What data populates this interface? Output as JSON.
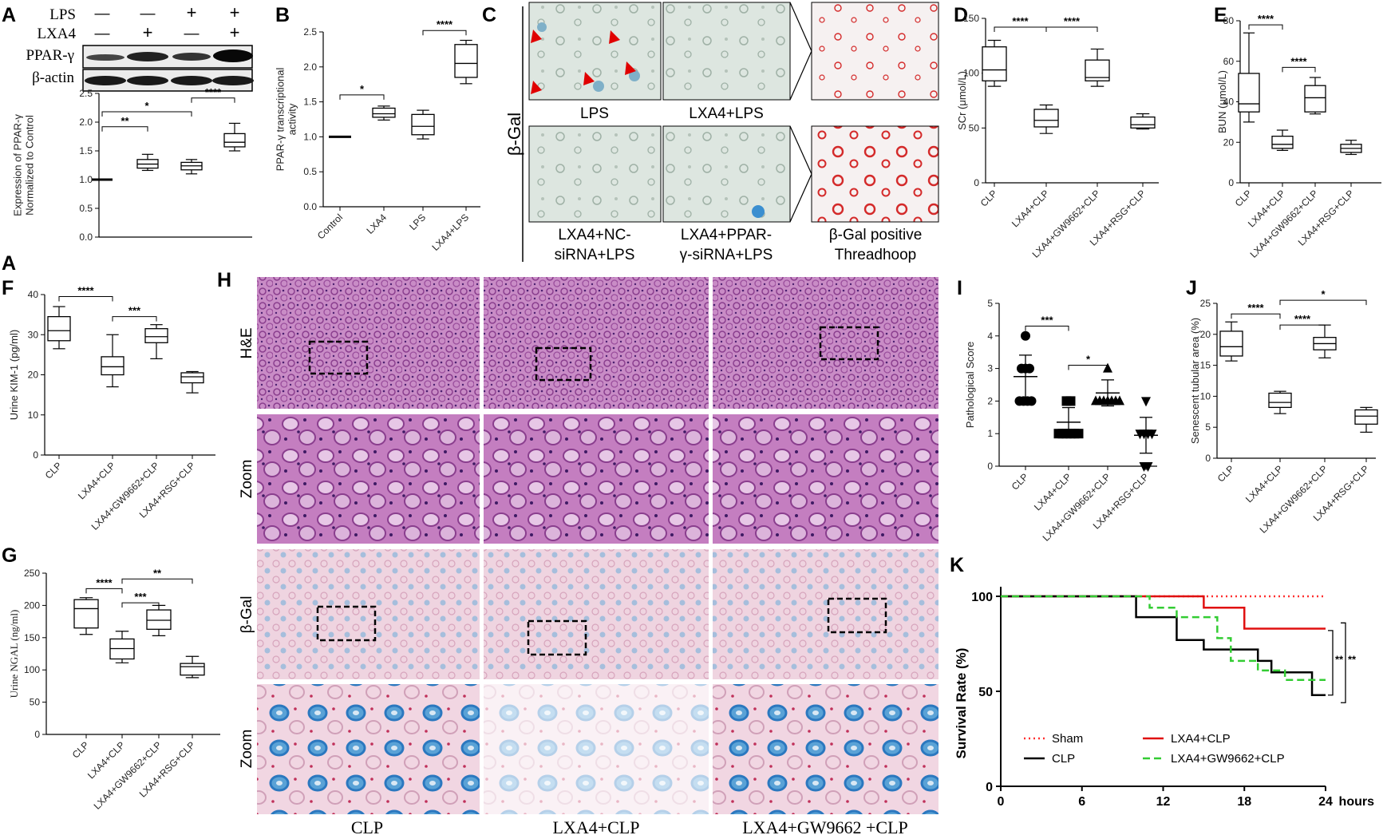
{
  "panel_letters": [
    "A",
    "B",
    "C",
    "D",
    "E",
    "F",
    "G",
    "H",
    "I",
    "J",
    "K"
  ],
  "colors": {
    "sham": "#ff3030",
    "clp": "#000000",
    "lxa4clp": "#e01010",
    "gw": "#33cc33",
    "sgal": "#d42a2a",
    "he": "#b060b0",
    "bgal_stain": "#3b8fd0"
  },
  "blot": {
    "row_labels": [
      "LPS",
      "LXA4"
    ],
    "lps": [
      "—",
      "—",
      "+",
      "+"
    ],
    "lxa4": [
      "—",
      "+",
      "—",
      "+"
    ],
    "bands": [
      "PPAR-γ",
      "β-actin"
    ]
  },
  "panel_c": {
    "row_label": "β-Gal",
    "captions": [
      "LPS",
      "LXA4+LPS",
      "LXA4+NC-",
      "siRNA+LPS",
      "LXA4+PPAR-",
      "γ-siRNA+LPS",
      "β-Gal positive",
      "Threadhoop"
    ]
  },
  "panel_h": {
    "row_labels": [
      "H&E",
      "Zoom",
      "β-Gal",
      "Zoom"
    ],
    "col_labels": [
      "CLP",
      "LXA4+CLP",
      "LXA4+GW9662 +CLP"
    ]
  },
  "chart_data": [
    {
      "panel": "A",
      "type": "box",
      "ylabel": [
        "Expression of PPAR-γ",
        "Normalized to Control"
      ],
      "ylim": [
        0,
        2.5
      ],
      "yticks": [
        0,
        0.5,
        1.0,
        1.5,
        2.0,
        2.5
      ],
      "categories": [
        "Control",
        "LXA4",
        "LPS",
        "LXA4+LPS"
      ],
      "show_xticks": false,
      "boxes": [
        {
          "min": 1.0,
          "q1": 1.0,
          "med": 1.0,
          "q3": 1.0,
          "max": 1.0
        },
        {
          "min": 1.16,
          "q1": 1.2,
          "med": 1.27,
          "q3": 1.35,
          "max": 1.44
        },
        {
          "min": 1.1,
          "q1": 1.17,
          "med": 1.24,
          "q3": 1.3,
          "max": 1.35
        },
        {
          "min": 1.5,
          "q1": 1.57,
          "med": 1.65,
          "q3": 1.8,
          "max": 1.98
        }
      ],
      "brackets": [
        {
          "from": 0,
          "to": 1,
          "label": "**",
          "y": 1.92
        },
        {
          "from": 0,
          "to": 2,
          "label": "*",
          "y": 2.18
        },
        {
          "from": 2,
          "to": 3,
          "label": "****",
          "y": 2.42
        }
      ]
    },
    {
      "panel": "B",
      "type": "box",
      "ylabel": [
        "PPAR-γ transcriptional",
        "activity"
      ],
      "ylim": [
        0,
        2.5
      ],
      "yticks": [
        0.0,
        0.5,
        1.0,
        1.5,
        2.0,
        2.5
      ],
      "categories": [
        "Control",
        "LXA4",
        "LPS",
        "LXA4+LPS"
      ],
      "show_xticks": true,
      "boxes": [
        {
          "min": 1.0,
          "q1": 1.0,
          "med": 1.0,
          "q3": 1.0,
          "max": 1.0
        },
        {
          "min": 1.24,
          "q1": 1.28,
          "med": 1.33,
          "q3": 1.41,
          "max": 1.44
        },
        {
          "min": 0.97,
          "q1": 1.03,
          "med": 1.15,
          "q3": 1.32,
          "max": 1.38
        },
        {
          "min": 1.76,
          "q1": 1.85,
          "med": 2.05,
          "q3": 2.32,
          "max": 2.38
        }
      ],
      "brackets": [
        {
          "from": 0,
          "to": 1,
          "label": "*",
          "y": 1.6
        },
        {
          "from": 2,
          "to": 3,
          "label": "****",
          "y": 2.52
        }
      ]
    },
    {
      "panel": "D",
      "type": "box",
      "ylabel": [
        "SCr (μmol/L)"
      ],
      "ylim": [
        0,
        150
      ],
      "yticks": [
        0,
        50,
        100,
        150
      ],
      "categories": [
        "CLP",
        "LXA4+CLP",
        "LXA4+GW9662+CLP",
        "LXA4+RSG+CLP"
      ],
      "show_xticks": true,
      "boxes": [
        {
          "min": 88,
          "q1": 93,
          "med": 103,
          "q3": 124,
          "max": 130
        },
        {
          "min": 45,
          "q1": 51,
          "med": 57,
          "q3": 67,
          "max": 71
        },
        {
          "min": 88,
          "q1": 93,
          "med": 96,
          "q3": 112,
          "max": 122
        },
        {
          "min": 49,
          "q1": 50,
          "med": 53,
          "q3": 60,
          "max": 63
        }
      ],
      "brackets": [
        {
          "from": 0,
          "to": 1,
          "label": "****",
          "y": 142
        },
        {
          "from": 1,
          "to": 2,
          "label": "****",
          "y": 142
        }
      ]
    },
    {
      "panel": "E",
      "type": "box",
      "ylabel": [
        "BUN (μmol/L)"
      ],
      "ylim": [
        0,
        80
      ],
      "yticks": [
        0,
        20,
        40,
        60,
        80
      ],
      "categories": [
        "CLP",
        "LXA4+CLP",
        "LXA4+GW9662+CLP",
        "LXA4+RSG+CLP"
      ],
      "show_xticks": true,
      "boxes": [
        {
          "min": 30,
          "q1": 35,
          "med": 39,
          "q3": 54,
          "max": 74
        },
        {
          "min": 16,
          "q1": 17,
          "med": 19,
          "q3": 23,
          "max": 26
        },
        {
          "min": 34,
          "q1": 35,
          "med": 42,
          "q3": 48,
          "max": 52
        },
        {
          "min": 14,
          "q1": 15,
          "med": 17,
          "q3": 19,
          "max": 21
        }
      ],
      "brackets": [
        {
          "from": 0,
          "to": 1,
          "label": "****",
          "y": 78
        },
        {
          "from": 1,
          "to": 2,
          "label": "****",
          "y": 57
        }
      ]
    },
    {
      "panel": "F",
      "type": "box",
      "ylabel": [
        "Urine KIM-1 (pg/ml)"
      ],
      "ylim": [
        0,
        40
      ],
      "yticks": [
        0,
        10,
        20,
        30,
        40
      ],
      "categories": [
        "CLP",
        "LXA4+CLP",
        "LXA4+GW9662+CLP",
        "LXA4+RSG+CLP"
      ],
      "show_xticks": true,
      "boxes": [
        {
          "min": 26.5,
          "q1": 28.5,
          "med": 31,
          "q3": 34.5,
          "max": 37
        },
        {
          "min": 17,
          "q1": 20,
          "med": 22,
          "q3": 24.5,
          "max": 30
        },
        {
          "min": 24,
          "q1": 28,
          "med": 29.5,
          "q3": 31.5,
          "max": 32.5
        },
        {
          "min": 15.5,
          "q1": 18,
          "med": 19.5,
          "q3": 20.5,
          "max": 20.8
        }
      ],
      "brackets": [
        {
          "from": 0,
          "to": 1,
          "label": "****",
          "y": 39.5
        },
        {
          "from": 1,
          "to": 2,
          "label": "***",
          "y": 34.5
        }
      ]
    },
    {
      "panel": "G",
      "type": "box",
      "ylabel": [
        "Urine NGAL (ng/ml)"
      ],
      "serif_ylabel": true,
      "ylim": [
        0,
        250
      ],
      "yticks": [
        0,
        50,
        100,
        150,
        200,
        250
      ],
      "categories": [
        "CLP",
        "LXA4+CLP",
        "LXA4+GW9662+CLP",
        "LXA4+RSG+CLP"
      ],
      "show_xticks": true,
      "boxes": [
        {
          "min": 155,
          "q1": 165,
          "med": 195,
          "q3": 209,
          "max": 212
        },
        {
          "min": 111,
          "q1": 117,
          "med": 133,
          "q3": 148,
          "max": 160
        },
        {
          "min": 153,
          "q1": 163,
          "med": 177,
          "q3": 193,
          "max": 200
        },
        {
          "min": 88,
          "q1": 92,
          "med": 105,
          "q3": 110,
          "max": 121
        }
      ],
      "brackets": [
        {
          "from": 0,
          "to": 1,
          "label": "****",
          "y": 226
        },
        {
          "from": 1,
          "to": 2,
          "label": "***",
          "y": 204
        },
        {
          "from": 1,
          "to": 3,
          "label": "**",
          "y": 241
        }
      ]
    },
    {
      "panel": "I",
      "type": "scatter",
      "ylabel": [
        "Pathological Score"
      ],
      "ylim": [
        0,
        5
      ],
      "yticks": [
        0,
        1,
        2,
        3,
        4,
        5
      ],
      "categories": [
        "CLP",
        "LXA4+CLP",
        "LXA4+GW9662+CLP",
        "LXA4+RSG+CLP"
      ],
      "show_xticks": true,
      "markers": [
        "circle",
        "square",
        "triangle",
        "triangle-down"
      ],
      "groups": [
        {
          "points": [
            4,
            3,
            3,
            3,
            2,
            2,
            2,
            2
          ],
          "mean": 2.75,
          "sd": 0.66
        },
        {
          "points": [
            2,
            2,
            1,
            1,
            1,
            1,
            1,
            1
          ],
          "mean": 1.35,
          "sd": 0.45
        },
        {
          "points": [
            3,
            2,
            2,
            2,
            2,
            2,
            2,
            2
          ],
          "mean": 2.25,
          "sd": 0.4
        },
        {
          "points": [
            2,
            1,
            1,
            1,
            1,
            0,
            0
          ],
          "mean": 0.95,
          "sd": 0.55
        }
      ],
      "brackets": [
        {
          "from": 0,
          "to": 1,
          "label": "***",
          "y": 4.3
        },
        {
          "from": 1,
          "to": 2,
          "label": "*",
          "y": 3.1
        }
      ]
    },
    {
      "panel": "J",
      "type": "box",
      "ylabel": [
        "Senescent tubular area (%)"
      ],
      "ylim": [
        0,
        25
      ],
      "yticks": [
        0,
        5,
        10,
        15,
        20,
        25
      ],
      "categories": [
        "CLP",
        "LXA4+CLP",
        "LXA4+GW9662+CLP",
        "LXA4+RSG+CLP"
      ],
      "show_xticks": true,
      "boxes": [
        {
          "min": 15.7,
          "q1": 16.5,
          "med": 18,
          "q3": 20.5,
          "max": 22
        },
        {
          "min": 7.2,
          "q1": 8.2,
          "med": 9,
          "q3": 10.5,
          "max": 10.8
        },
        {
          "min": 16.2,
          "q1": 17.5,
          "med": 18.5,
          "q3": 19.5,
          "max": 21.5
        },
        {
          "min": 4.2,
          "q1": 5.5,
          "med": 6.8,
          "q3": 7.8,
          "max": 8.2
        }
      ],
      "brackets": [
        {
          "from": 0,
          "to": 1,
          "label": "****",
          "y": 23.3
        },
        {
          "from": 1,
          "to": 2,
          "label": "****",
          "y": 21.5
        },
        {
          "from": 1,
          "to": 3,
          "label": "*",
          "y": 25.5
        }
      ]
    },
    {
      "panel": "K",
      "type": "line",
      "ylabel": "Survival Rate (%)",
      "xlabel": "hours",
      "xlim": [
        0,
        24
      ],
      "xticks": [
        0,
        6,
        12,
        18,
        24
      ],
      "ylim": [
        0,
        100
      ],
      "yticks": [
        0,
        50,
        100
      ],
      "series": [
        {
          "name": "Sham",
          "style": "dotted",
          "steps": [
            [
              0,
              100
            ],
            [
              24,
              100
            ]
          ]
        },
        {
          "name": "LXA4+CLP",
          "style": "solid",
          "steps": [
            [
              0,
              100
            ],
            [
              15,
              100
            ],
            [
              15,
              94
            ],
            [
              18,
              94
            ],
            [
              18,
              83
            ],
            [
              24,
              83
            ]
          ]
        },
        {
          "name": "CLP",
          "style": "solid",
          "steps": [
            [
              0,
              100
            ],
            [
              10,
              100
            ],
            [
              10,
              89
            ],
            [
              13,
              89
            ],
            [
              13,
              77
            ],
            [
              15,
              77
            ],
            [
              15,
              72
            ],
            [
              19,
              72
            ],
            [
              19,
              66
            ],
            [
              20,
              66
            ],
            [
              20,
              60
            ],
            [
              23,
              60
            ],
            [
              23,
              48
            ],
            [
              24,
              48
            ]
          ]
        },
        {
          "name": "LXA4+GW9662+CLP",
          "style": "dashed",
          "steps": [
            [
              0,
              100
            ],
            [
              11,
              100
            ],
            [
              11,
              94
            ],
            [
              13,
              94
            ],
            [
              13,
              89
            ],
            [
              16,
              89
            ],
            [
              16,
              78
            ],
            [
              17,
              78
            ],
            [
              17,
              66
            ],
            [
              19,
              66
            ],
            [
              19,
              61
            ],
            [
              21,
              61
            ],
            [
              21,
              56
            ],
            [
              24,
              56
            ]
          ]
        }
      ],
      "annotations": [
        "**",
        "**"
      ]
    }
  ]
}
